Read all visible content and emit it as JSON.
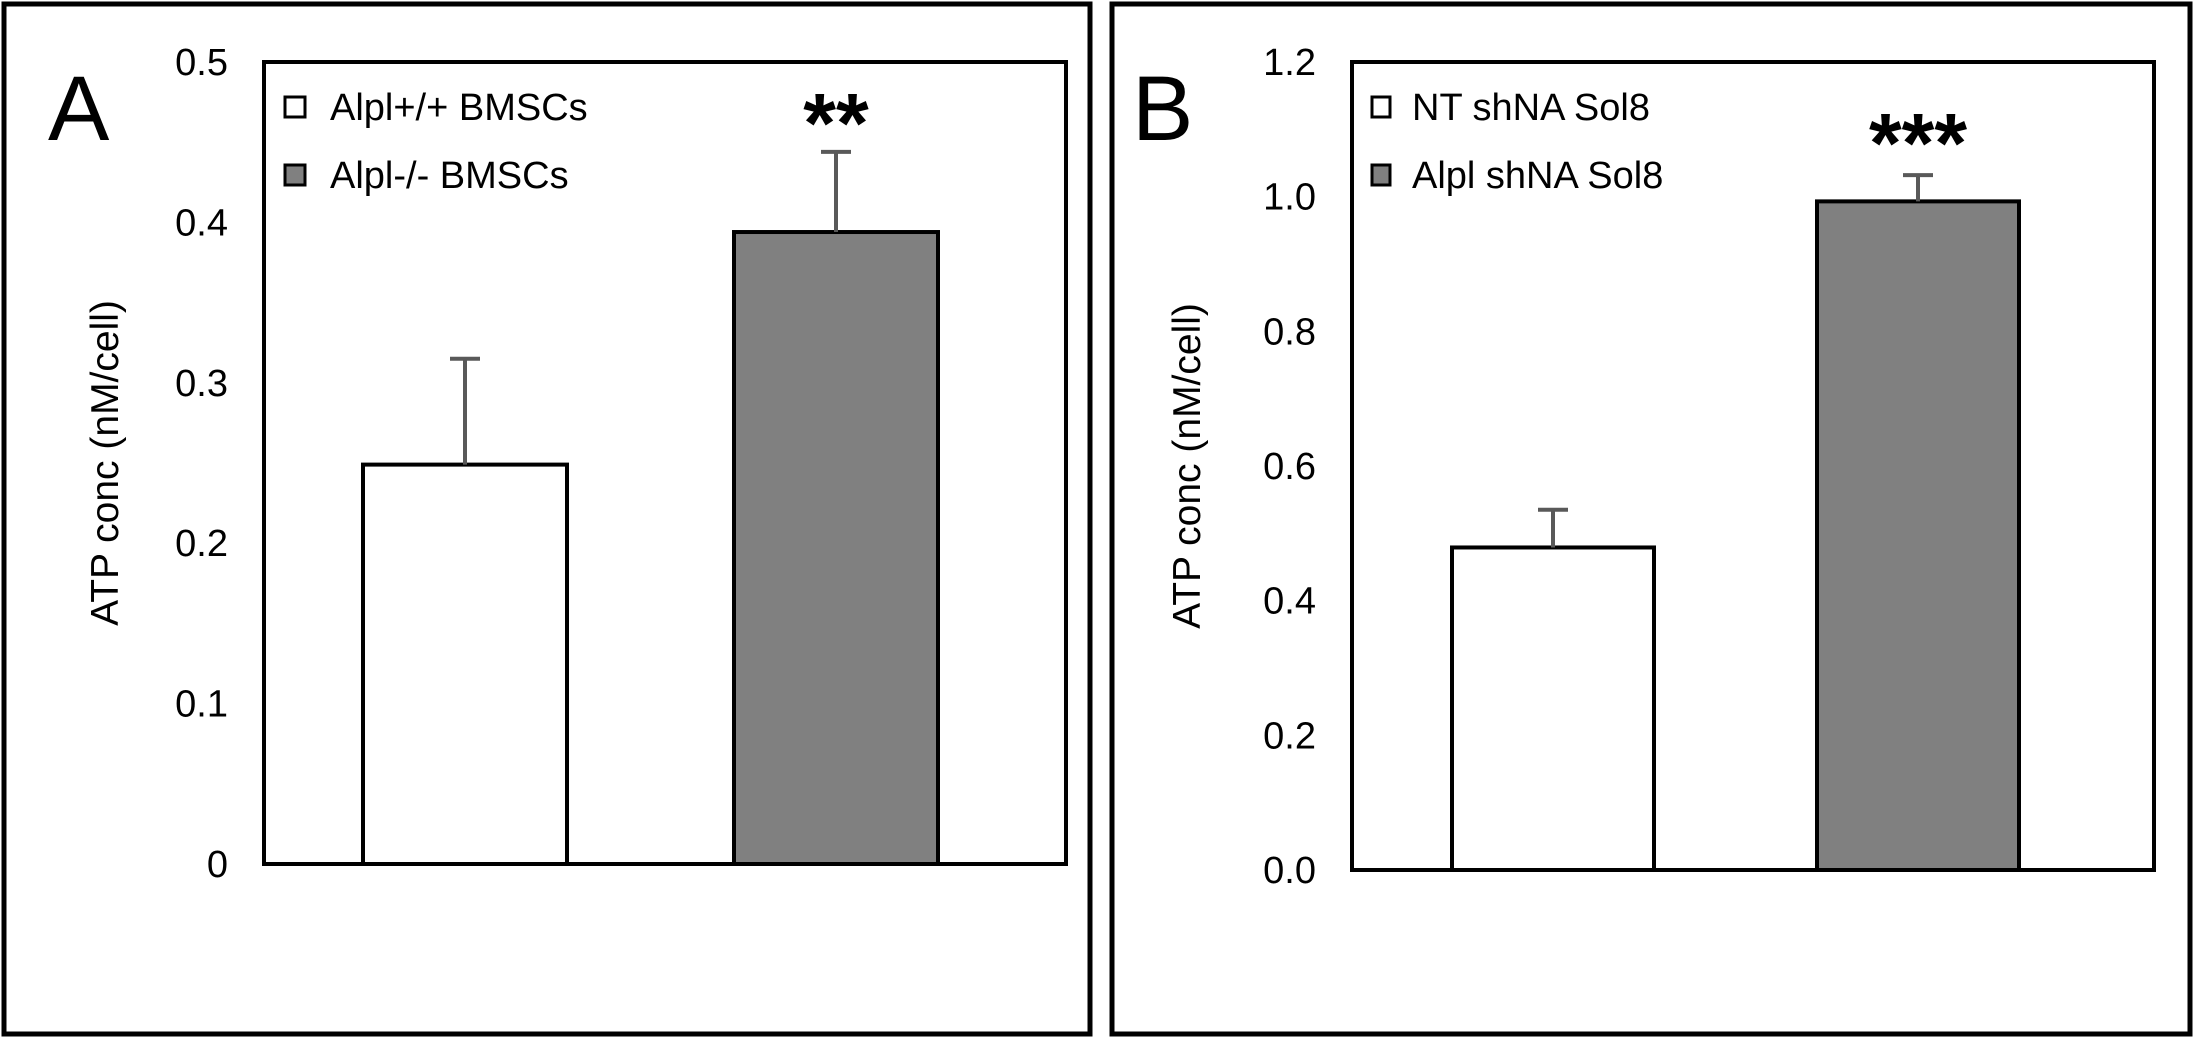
{
  "figure": {
    "background": "#ffffff"
  },
  "chart_data": [
    {
      "panel": "A",
      "type": "bar",
      "title": "",
      "xlabel": "",
      "ylabel": "ATP conc (nM/cell)",
      "ylim": [
        0,
        0.5
      ],
      "yticks": [
        "0",
        "0.1",
        "0.2",
        "0.3",
        "0.4",
        "0.5"
      ],
      "ytick_values": [
        0,
        0.1,
        0.2,
        0.3,
        0.4,
        0.5
      ],
      "grid": false,
      "legend_position": "top-left",
      "categories": [
        "Alpl+/+ BMSCs",
        "Alpl-/- BMSCs"
      ],
      "values": [
        0.249,
        0.394
      ],
      "errors": [
        0.066,
        0.05
      ],
      "colors": [
        "#ffffff",
        "#808080"
      ],
      "significance": "**"
    },
    {
      "panel": "B",
      "type": "bar",
      "title": "",
      "xlabel": "",
      "ylabel": "ATP conc (nM/cell)",
      "ylim": [
        0,
        1.2
      ],
      "yticks": [
        "0.0",
        "0.2",
        "0.4",
        "0.6",
        "0.8",
        "1.0",
        "1.2"
      ],
      "ytick_values": [
        0,
        0.2,
        0.4,
        0.6,
        0.8,
        1.0,
        1.2
      ],
      "grid": false,
      "legend_position": "top-left",
      "categories": [
        "NT shNA Sol8",
        "Alpl shNA Sol8"
      ],
      "values": [
        0.479,
        0.993
      ],
      "errors": [
        0.056,
        0.039
      ],
      "colors": [
        "#ffffff",
        "#808080"
      ],
      "significance": "***"
    }
  ]
}
